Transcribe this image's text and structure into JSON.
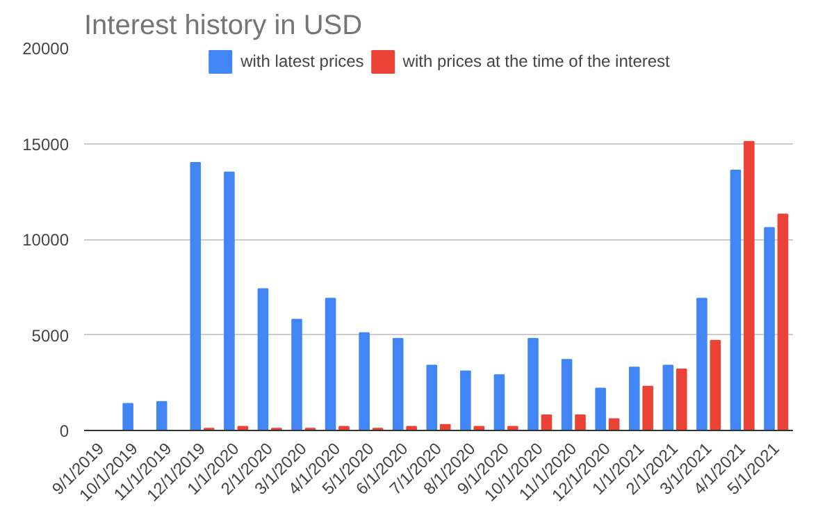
{
  "chart_data": {
    "type": "bar",
    "title": "Interest history in USD",
    "categories": [
      "9/1/2019",
      "10/1/2019",
      "11/1/2019",
      "12/1/2019",
      "1/1/2020",
      "2/1/2020",
      "3/1/2020",
      "4/1/2020",
      "5/1/2020",
      "6/1/2020",
      "7/1/2020",
      "8/1/2020",
      "9/1/2020",
      "10/1/2020",
      "11/1/2020",
      "12/1/2020",
      "1/1/2021",
      "2/1/2021",
      "3/1/2021",
      "4/1/2021",
      "5/1/2021"
    ],
    "series": [
      {
        "name": "with latest prices",
        "color": "#4285f4",
        "values": [
          0,
          1400,
          1500,
          14000,
          13500,
          7400,
          5800,
          6900,
          5100,
          4800,
          3400,
          3100,
          2900,
          4800,
          3700,
          2200,
          3300,
          3400,
          6900,
          13600,
          10600
        ]
      },
      {
        "name": "with prices at the time of the interest",
        "color": "#ea4335",
        "values": [
          0,
          0,
          0,
          100,
          200,
          100,
          100,
          200,
          100,
          200,
          300,
          200,
          200,
          800,
          800,
          600,
          2300,
          3200,
          4700,
          15100,
          11300
        ]
      }
    ],
    "ylim": [
      0,
      20000
    ],
    "yticks": [
      0,
      5000,
      10000,
      15000,
      20000
    ],
    "grid": "y",
    "legend": "top"
  }
}
